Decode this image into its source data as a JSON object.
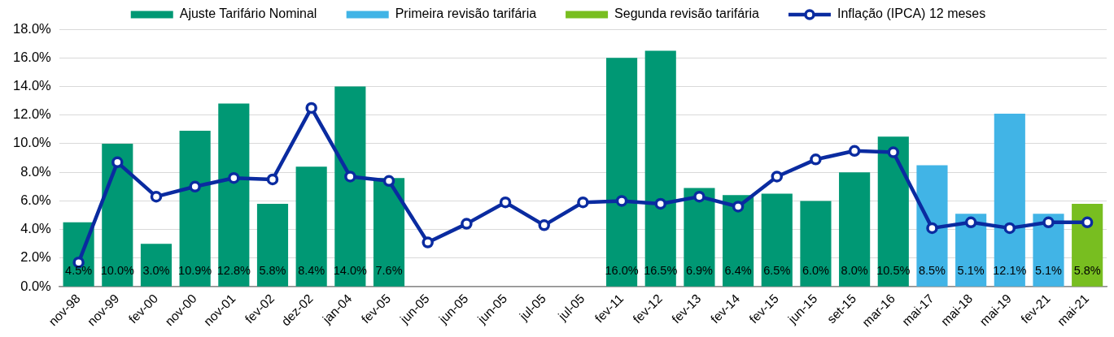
{
  "chart_data": {
    "type": "bar",
    "categories": [
      "nov-98",
      "nov-99",
      "fev-00",
      "nov-00",
      "nov-01",
      "fev-02",
      "dez-02",
      "jan-04",
      "fev-05",
      "jun-05",
      "jun-05",
      "jun-05",
      "jul-05",
      "jul-05",
      "fev-11",
      "fev-12",
      "fev-13",
      "fev-14",
      "fev-15",
      "jun-15",
      "set-15",
      "mar-16",
      "mai-17",
      "mai-18",
      "mai-19",
      "fev-21",
      "mai-21"
    ],
    "series": [
      {
        "name": "Ajuste Tarifário Nominal",
        "color": "#009874",
        "values": [
          4.5,
          10.0,
          3.0,
          10.9,
          12.8,
          5.8,
          8.4,
          14.0,
          7.6,
          null,
          null,
          null,
          null,
          null,
          16.0,
          16.5,
          6.9,
          6.4,
          6.5,
          6.0,
          8.0,
          10.5,
          null,
          null,
          null,
          null,
          null
        ],
        "value_labels": [
          "4.5%",
          "10.0%",
          "3.0%",
          "10.9%",
          "12.8%",
          "5.8%",
          "8.4%",
          "14.0%",
          "7.6%",
          null,
          null,
          null,
          null,
          null,
          "16.0%",
          "16.5%",
          "6.9%",
          "6.4%",
          "6.5%",
          "6.0%",
          "8.0%",
          "10.5%",
          null,
          null,
          null,
          null,
          null
        ]
      },
      {
        "name": "Primeira revisão tarifária",
        "color": "#41b4e6",
        "values": [
          null,
          null,
          null,
          null,
          null,
          null,
          null,
          null,
          null,
          null,
          null,
          null,
          null,
          null,
          null,
          null,
          null,
          null,
          null,
          null,
          null,
          null,
          8.5,
          5.1,
          12.1,
          5.1,
          null
        ],
        "value_labels": [
          null,
          null,
          null,
          null,
          null,
          null,
          null,
          null,
          null,
          null,
          null,
          null,
          null,
          null,
          null,
          null,
          null,
          null,
          null,
          null,
          null,
          null,
          "8.5%",
          "5.1%",
          "12.1%",
          "5.1%",
          null
        ]
      },
      {
        "name": "Segunda revisão tarifária",
        "color": "#78be20",
        "values": [
          null,
          null,
          null,
          null,
          null,
          null,
          null,
          null,
          null,
          null,
          null,
          null,
          null,
          null,
          null,
          null,
          null,
          null,
          null,
          null,
          null,
          null,
          null,
          null,
          null,
          null,
          5.8
        ],
        "value_labels": [
          null,
          null,
          null,
          null,
          null,
          null,
          null,
          null,
          null,
          null,
          null,
          null,
          null,
          null,
          null,
          null,
          null,
          null,
          null,
          null,
          null,
          null,
          null,
          null,
          null,
          null,
          "5.8%"
        ]
      },
      {
        "name": "Inflação (IPCA) 12 meses",
        "type": "line",
        "color": "#0a2ba0",
        "values": [
          1.7,
          8.7,
          6.3,
          7.0,
          7.6,
          7.5,
          12.5,
          7.7,
          7.4,
          3.1,
          4.4,
          5.9,
          4.3,
          5.9,
          6.0,
          5.8,
          6.3,
          5.6,
          7.7,
          8.9,
          9.5,
          9.4,
          4.1,
          4.5,
          4.1,
          4.5,
          4.5
        ]
      }
    ],
    "ylim": [
      0,
      18
    ],
    "yticks": [
      {
        "value": 0,
        "label": "0.0%"
      },
      {
        "value": 2,
        "label": "2.0%"
      },
      {
        "value": 4,
        "label": "4.0%"
      },
      {
        "value": 6,
        "label": "6.0%"
      },
      {
        "value": 8,
        "label": "8.0%"
      },
      {
        "value": 10,
        "label": "10.0%"
      },
      {
        "value": 12,
        "label": "12.0%"
      },
      {
        "value": 14,
        "label": "14.0%"
      },
      {
        "value": 16,
        "label": "16.0%"
      },
      {
        "value": 18,
        "label": "18.0%"
      }
    ],
    "grid": "y",
    "legend": "top",
    "marker": "circle",
    "line_style": "solid"
  }
}
